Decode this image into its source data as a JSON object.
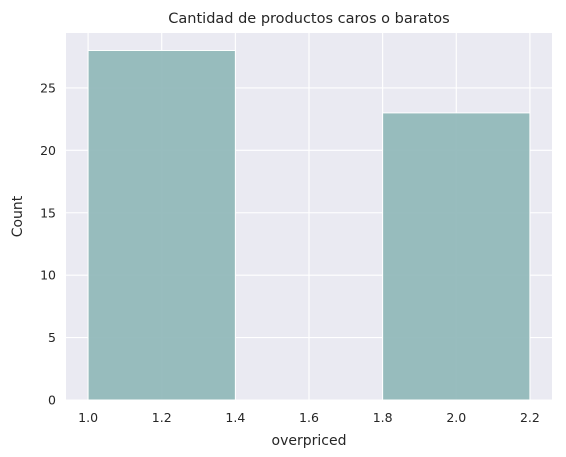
{
  "chart_data": {
    "type": "bar",
    "title": "Cantidad de productos caros o baratos",
    "xlabel": "overpriced",
    "ylabel": "Count",
    "bins": [
      {
        "x0": 1.0,
        "x1": 1.4,
        "value": 28
      },
      {
        "x0": 1.4,
        "x1": 1.8,
        "value": 0
      },
      {
        "x0": 1.8,
        "x1": 2.2,
        "value": 23
      }
    ],
    "xlim": [
      0.94,
      2.26
    ],
    "ylim": [
      0,
      29.4
    ],
    "xticks": [
      1.0,
      1.2,
      1.4,
      1.6,
      1.8,
      2.0,
      2.2
    ],
    "xtick_labels": [
      "1.0",
      "1.2",
      "1.4",
      "1.6",
      "1.8",
      "2.0",
      "2.2"
    ],
    "yticks": [
      0,
      5,
      10,
      15,
      20,
      25
    ],
    "ytick_labels": [
      "0",
      "5",
      "10",
      "15",
      "20",
      "25"
    ],
    "grid": true,
    "colors": {
      "bar_fill": "#8fb7b9",
      "bar_stroke": "#ffffff",
      "plot_background": "#eaeaf2",
      "grid": "#ffffff"
    }
  }
}
